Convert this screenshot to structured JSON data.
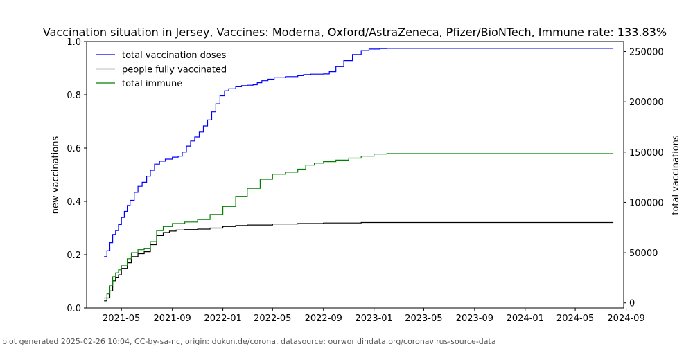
{
  "chart_data": {
    "type": "line",
    "title": "Vaccination situation in Jersey, Vaccines: Moderna, Oxford/AstraZeneca, Pfizer/BioNTech, Immune rate: 133.83%",
    "ylabel_left": "new vaccinations",
    "ylabel_right": "total vaccinations",
    "xlabel": "",
    "ylim_left": [
      0.0,
      1.0
    ],
    "ylim_right": [
      -5000,
      260000
    ],
    "xlim": [
      "2021-02-06",
      "2024-08-26"
    ],
    "left_ticks": [
      "0.0",
      "0.2",
      "0.4",
      "0.6",
      "0.8",
      "1.0"
    ],
    "right_ticks": [
      "0",
      "50000",
      "100000",
      "150000",
      "200000",
      "250000"
    ],
    "x_ticks": [
      "2021-05",
      "2021-09",
      "2022-01",
      "2022-05",
      "2022-09",
      "2023-01",
      "2023-05",
      "2023-09",
      "2024-01",
      "2024-05",
      "2024-09"
    ],
    "legend_position": "top-left",
    "grid": false,
    "series": [
      {
        "name": "total vaccination doses",
        "color": "#0000ff",
        "axis": "right",
        "points": [
          [
            "2021-03-20",
            46000
          ],
          [
            "2021-03-27",
            52000
          ],
          [
            "2021-04-03",
            60000
          ],
          [
            "2021-04-10",
            68000
          ],
          [
            "2021-04-17",
            72000
          ],
          [
            "2021-04-24",
            78000
          ],
          [
            "2021-05-01",
            85000
          ],
          [
            "2021-05-08",
            91000
          ],
          [
            "2021-05-15",
            97000
          ],
          [
            "2021-05-22",
            102000
          ],
          [
            "2021-06-01",
            110000
          ],
          [
            "2021-06-10",
            116000
          ],
          [
            "2021-06-20",
            120000
          ],
          [
            "2021-07-01",
            126000
          ],
          [
            "2021-07-10",
            132000
          ],
          [
            "2021-07-20",
            138000
          ],
          [
            "2021-08-01",
            141000
          ],
          [
            "2021-08-15",
            143000
          ],
          [
            "2021-09-01",
            145000
          ],
          [
            "2021-09-15",
            146000
          ],
          [
            "2021-09-25",
            150000
          ],
          [
            "2021-10-05",
            156000
          ],
          [
            "2021-10-15",
            161000
          ],
          [
            "2021-10-25",
            165000
          ],
          [
            "2021-11-05",
            170000
          ],
          [
            "2021-11-15",
            176000
          ],
          [
            "2021-11-25",
            182000
          ],
          [
            "2021-12-05",
            190000
          ],
          [
            "2021-12-15",
            198000
          ],
          [
            "2021-12-25",
            206000
          ],
          [
            "2022-01-05",
            211000
          ],
          [
            "2022-01-15",
            213000
          ],
          [
            "2022-02-01",
            215000
          ],
          [
            "2022-02-15",
            216000
          ],
          [
            "2022-03-01",
            216500
          ],
          [
            "2022-03-15",
            217000
          ],
          [
            "2022-03-25",
            219000
          ],
          [
            "2022-04-05",
            221000
          ],
          [
            "2022-04-20",
            222500
          ],
          [
            "2022-05-05",
            224000
          ],
          [
            "2022-06-01",
            225000
          ],
          [
            "2022-07-01",
            226000
          ],
          [
            "2022-07-15",
            227000
          ],
          [
            "2022-08-01",
            227500
          ],
          [
            "2022-08-15",
            227500
          ],
          [
            "2022-09-01",
            227700
          ],
          [
            "2022-09-15",
            230000
          ],
          [
            "2022-10-01",
            235000
          ],
          [
            "2022-10-20",
            241000
          ],
          [
            "2022-11-10",
            247000
          ],
          [
            "2022-12-01",
            251000
          ],
          [
            "2022-12-20",
            252500
          ],
          [
            "2023-01-15",
            253000
          ],
          [
            "2023-02-01",
            253200
          ],
          [
            "2023-06-01",
            253200
          ],
          [
            "2024-01-01",
            253200
          ],
          [
            "2024-08-01",
            253200
          ]
        ]
      },
      {
        "name": "people fully vaccinated",
        "color": "#000000",
        "axis": "right",
        "points": [
          [
            "2021-03-20",
            2000
          ],
          [
            "2021-03-27",
            5000
          ],
          [
            "2021-04-03",
            12000
          ],
          [
            "2021-04-10",
            22000
          ],
          [
            "2021-04-17",
            25000
          ],
          [
            "2021-04-24",
            28000
          ],
          [
            "2021-05-01",
            34000
          ],
          [
            "2021-05-15",
            40000
          ],
          [
            "2021-05-25",
            46000
          ],
          [
            "2021-06-10",
            49000
          ],
          [
            "2021-06-25",
            51000
          ],
          [
            "2021-07-10",
            58000
          ],
          [
            "2021-07-25",
            67000
          ],
          [
            "2021-08-10",
            70000
          ],
          [
            "2021-08-25",
            71500
          ],
          [
            "2021-09-10",
            72500
          ],
          [
            "2021-10-01",
            73000
          ],
          [
            "2021-11-01",
            73500
          ],
          [
            "2021-12-01",
            74500
          ],
          [
            "2022-01-01",
            76000
          ],
          [
            "2022-02-01",
            77000
          ],
          [
            "2022-03-01",
            77500
          ],
          [
            "2022-05-01",
            78500
          ],
          [
            "2022-07-01",
            79000
          ],
          [
            "2022-09-01",
            79500
          ],
          [
            "2022-12-01",
            80000
          ],
          [
            "2023-06-01",
            80000
          ],
          [
            "2024-08-01",
            80000
          ]
        ]
      },
      {
        "name": "total immune",
        "color": "#008000",
        "axis": "right",
        "points": [
          [
            "2021-03-20",
            5000
          ],
          [
            "2021-03-27",
            9000
          ],
          [
            "2021-04-03",
            17000
          ],
          [
            "2021-04-10",
            26000
          ],
          [
            "2021-04-17",
            30000
          ],
          [
            "2021-04-24",
            33000
          ],
          [
            "2021-05-01",
            37000
          ],
          [
            "2021-05-15",
            44000
          ],
          [
            "2021-05-25",
            50000
          ],
          [
            "2021-06-10",
            53000
          ],
          [
            "2021-06-25",
            54000
          ],
          [
            "2021-07-10",
            61000
          ],
          [
            "2021-07-25",
            72000
          ],
          [
            "2021-08-10",
            76000
          ],
          [
            "2021-09-01",
            79000
          ],
          [
            "2021-10-01",
            80500
          ],
          [
            "2021-11-01",
            83000
          ],
          [
            "2021-12-01",
            88000
          ],
          [
            "2022-01-01",
            96000
          ],
          [
            "2022-02-01",
            106000
          ],
          [
            "2022-03-01",
            114000
          ],
          [
            "2022-04-01",
            123000
          ],
          [
            "2022-05-01",
            128000
          ],
          [
            "2022-06-01",
            130000
          ],
          [
            "2022-07-01",
            133000
          ],
          [
            "2022-07-20",
            137000
          ],
          [
            "2022-08-10",
            139000
          ],
          [
            "2022-09-01",
            140500
          ],
          [
            "2022-10-01",
            142000
          ],
          [
            "2022-11-01",
            144000
          ],
          [
            "2022-12-01",
            146000
          ],
          [
            "2023-01-01",
            148000
          ],
          [
            "2023-02-01",
            148500
          ],
          [
            "2023-06-01",
            148500
          ],
          [
            "2024-08-01",
            148500
          ]
        ]
      }
    ]
  },
  "footer": {
    "text": "plot generated 2025-02-26 10:04, CC-by-sa-nc, origin: dukun.de/corona, datasource: ourworldindata.org/coronavirus-source-data"
  }
}
